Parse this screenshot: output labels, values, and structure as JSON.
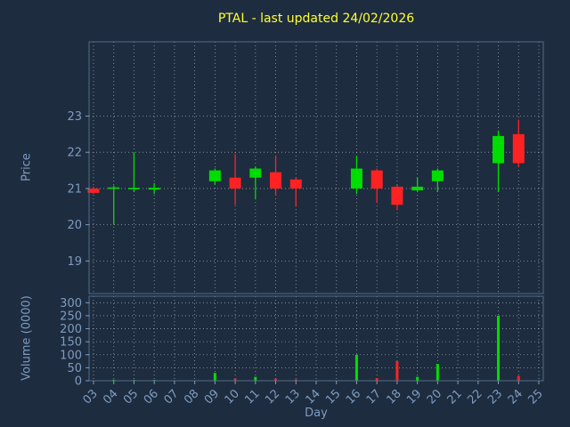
{
  "colors": {
    "background": "#1e2c3f",
    "up": "#00dd00",
    "down": "#ff2222",
    "title": "#ffff33",
    "axis": "#7d9cc0",
    "grid": "rgba(255,255,255,0.55)",
    "border": "#536b85"
  },
  "chart_data": {
    "type": "candlestick+volume",
    "title": "PTAL - last updated 24/02/2026",
    "xlabel": "Day",
    "price_ylabel": "Price",
    "volume_ylabel": "Volume (0000)",
    "x_ticks": [
      "03",
      "04",
      "05",
      "06",
      "07",
      "08",
      "09",
      "10",
      "11",
      "12",
      "13",
      "14",
      "15",
      "16",
      "17",
      "18",
      "19",
      "20",
      "21",
      "22",
      "23",
      "24",
      "25"
    ],
    "x_range": [
      3,
      25
    ],
    "price_ticks": [
      19,
      20,
      21,
      22,
      23
    ],
    "price_ylim": [
      18.1,
      25.05
    ],
    "volume_ticks": [
      0,
      50,
      100,
      150,
      200,
      250,
      300
    ],
    "volume_ylim": [
      0,
      325
    ],
    "grid": true,
    "legend": false,
    "candles": [
      {
        "day": 3,
        "open": 21.0,
        "high": 21.05,
        "low": 20.85,
        "close": 20.88,
        "volume": 2
      },
      {
        "day": 4,
        "open": 21.0,
        "high": 21.08,
        "low": 20.0,
        "close": 21.03,
        "volume": 4
      },
      {
        "day": 5,
        "open": 20.98,
        "high": 22.0,
        "low": 20.9,
        "close": 21.02,
        "volume": 3
      },
      {
        "day": 6,
        "open": 20.97,
        "high": 21.15,
        "low": 20.85,
        "close": 21.02,
        "volume": 3
      },
      {
        "day": 9,
        "open": 21.2,
        "high": 21.55,
        "low": 21.1,
        "close": 21.5,
        "volume": 30
      },
      {
        "day": 10,
        "open": 21.3,
        "high": 21.95,
        "low": 20.55,
        "close": 21.0,
        "volume": 8
      },
      {
        "day": 11,
        "open": 21.3,
        "high": 21.6,
        "low": 20.7,
        "close": 21.55,
        "volume": 15
      },
      {
        "day": 12,
        "open": 21.45,
        "high": 21.9,
        "low": 20.8,
        "close": 21.0,
        "volume": 8
      },
      {
        "day": 13,
        "open": 21.25,
        "high": 21.3,
        "low": 20.5,
        "close": 21.0,
        "volume": 5
      },
      {
        "day": 16,
        "open": 21.0,
        "high": 21.9,
        "low": 20.85,
        "close": 21.55,
        "volume": 100
      },
      {
        "day": 17,
        "open": 21.5,
        "high": 21.55,
        "low": 20.6,
        "close": 21.0,
        "volume": 10
      },
      {
        "day": 18,
        "open": 21.05,
        "high": 21.1,
        "low": 20.4,
        "close": 20.55,
        "volume": 75
      },
      {
        "day": 19,
        "open": 20.95,
        "high": 21.3,
        "low": 20.9,
        "close": 21.05,
        "volume": 15
      },
      {
        "day": 20,
        "open": 21.2,
        "high": 21.55,
        "low": 20.9,
        "close": 21.5,
        "volume": 65
      },
      {
        "day": 23,
        "open": 21.7,
        "high": 22.6,
        "low": 20.9,
        "close": 22.45,
        "volume": 250
      },
      {
        "day": 24,
        "open": 22.5,
        "high": 22.9,
        "low": 21.6,
        "close": 21.7,
        "volume": 18
      }
    ]
  }
}
